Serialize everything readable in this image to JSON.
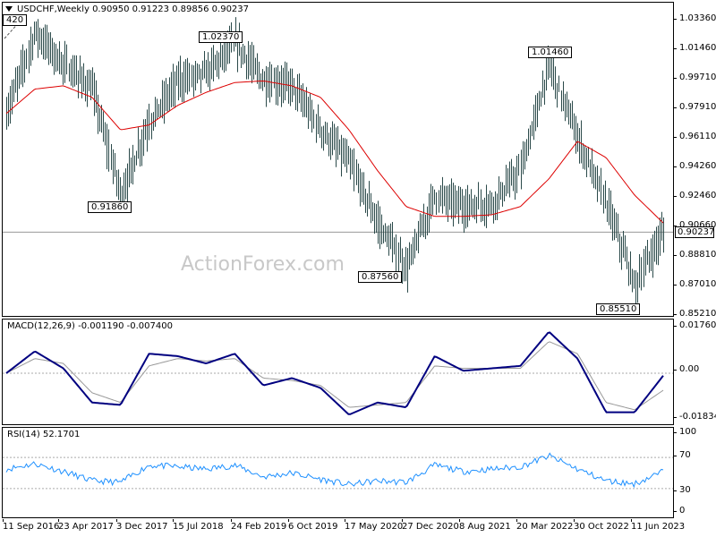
{
  "main": {
    "title": "USDCHF,Weekly  0.90950 0.91223 0.89856 0.90237",
    "corner_label": "420",
    "watermark": "ActionForex.com",
    "current_price": "0.90237",
    "price_ticks": [
      "1.03360",
      "1.01460",
      "0.99710",
      "0.97910",
      "0.96110",
      "0.94260",
      "0.92460",
      "0.90660",
      "0.88810",
      "0.87010",
      "0.85210"
    ],
    "annotations": [
      "1.02370",
      "0.91860",
      "0.87560",
      "1.01460",
      "0.85510"
    ]
  },
  "macd": {
    "title": "MACD(12,26,9) -0.001190 -0.007400",
    "ticks": [
      "0.017603",
      "0.00",
      "-0.01834"
    ]
  },
  "rsi": {
    "title": "RSI(14) 52.1701",
    "ticks": [
      "100",
      "70",
      "30",
      "0"
    ]
  },
  "xaxis": {
    "labels": [
      "11 Sep 2016",
      "23 Apr 2017",
      "3 Dec 2017",
      "15 Jul 2018",
      "24 Feb 2019",
      "6 Oct 2019",
      "17 May 2020",
      "27 Dec 2020",
      "8 Aug 2021",
      "20 Mar 2022",
      "30 Oct 2022",
      "11 Jun 2023"
    ]
  },
  "colors": {
    "price_bars": "#2b4a4a",
    "ma": "#dd0000",
    "macd": "#000080",
    "signal": "#999999",
    "rsi": "#1e90ff"
  },
  "chart_data": [
    {
      "type": "ohlc",
      "title": "USDCHF,Weekly",
      "timeframe": "Weekly",
      "last_bar": {
        "open": 0.9095,
        "high": 0.91223,
        "low": 0.89856,
        "close": 0.90237
      },
      "x": [
        "Sep 2016",
        "Jan 2017",
        "Apr 2017",
        "Aug 2017",
        "Dec 2017",
        "Apr 2018",
        "Jul 2018",
        "Oct 2018",
        "Feb 2019",
        "Jun 2019",
        "Oct 2019",
        "Feb 2020",
        "May 2020",
        "Sep 2020",
        "Dec 2020",
        "Apr 2021",
        "Aug 2021",
        "Dec 2021",
        "Mar 2022",
        "Jul 2022",
        "Oct 2022",
        "Feb 2023",
        "Jun 2023",
        "Sep 2023"
      ],
      "series": [
        {
          "values": [
            0.975,
            1.025,
            1.005,
            0.99,
            0.925,
            0.97,
            0.995,
            1.0,
            1.018,
            0.995,
            0.992,
            0.965,
            0.945,
            0.908,
            0.88,
            0.925,
            0.918,
            0.92,
            0.94,
            1.005,
            0.96,
            0.92,
            0.87,
            0.903
          ]
        },
        {
          "name": "Moving Average",
          "values": [
            0.975,
            0.99,
            0.992,
            0.985,
            0.965,
            0.968,
            0.98,
            0.988,
            0.994,
            0.995,
            0.992,
            0.985,
            0.965,
            0.94,
            0.918,
            0.912,
            0.912,
            0.913,
            0.918,
            0.935,
            0.958,
            0.948,
            0.925,
            0.908
          ]
        }
      ],
      "annotations": [
        {
          "label": "1.02370",
          "value": 1.0237
        },
        {
          "label": "0.91860",
          "value": 0.9186
        },
        {
          "label": "0.87560",
          "value": 0.8756
        },
        {
          "label": "1.01460",
          "value": 1.0146
        },
        {
          "label": "0.85510",
          "value": 0.8551
        }
      ],
      "ylim": [
        0.8521,
        1.0336
      ]
    },
    {
      "type": "line",
      "title": "MACD(12,26,9) -0.001190 -0.007400",
      "x": [
        "Sep 2016",
        "Jan 2017",
        "Apr 2017",
        "Aug 2017",
        "Dec 2017",
        "Apr 2018",
        "Jul 2018",
        "Oct 2018",
        "Feb 2019",
        "Jun 2019",
        "Oct 2019",
        "Feb 2020",
        "May 2020",
        "Sep 2020",
        "Dec 2020",
        "Apr 2021",
        "Aug 2021",
        "Dec 2021",
        "Mar 2022",
        "Jul 2022",
        "Oct 2022",
        "Feb 2023",
        "Jun 2023",
        "Sep 2023"
      ],
      "series": [
        {
          "values": [
            0.0,
            0.009,
            0.002,
            -0.012,
            -0.013,
            0.008,
            0.007,
            0.004,
            0.008,
            -0.005,
            -0.002,
            -0.006,
            -0.017,
            -0.012,
            -0.014,
            0.007,
            0.001,
            0.002,
            0.003,
            0.017,
            0.006,
            -0.016,
            -0.016,
            -0.001
          ]
        },
        {
          "values": [
            0.0,
            0.006,
            0.004,
            -0.008,
            -0.012,
            0.003,
            0.006,
            0.005,
            0.006,
            -0.002,
            -0.003,
            -0.005,
            -0.014,
            -0.013,
            -0.012,
            0.003,
            0.002,
            0.002,
            0.002,
            0.013,
            0.008,
            -0.012,
            -0.015,
            -0.007
          ]
        }
      ],
      "ylim": [
        -0.01834,
        0.017603
      ]
    },
    {
      "type": "line",
      "title": "RSI(14) 52.1701",
      "x": [
        "Sep 2016",
        "Jan 2017",
        "Apr 2017",
        "Aug 2017",
        "Dec 2017",
        "Apr 2018",
        "Jul 2018",
        "Oct 2018",
        "Feb 2019",
        "Jun 2019",
        "Oct 2019",
        "Feb 2020",
        "May 2020",
        "Sep 2020",
        "Dec 2020",
        "Apr 2021",
        "Aug 2021",
        "Dec 2021",
        "Mar 2022",
        "Jul 2022",
        "Oct 2022",
        "Feb 2023",
        "Jun 2023",
        "Sep 2023"
      ],
      "series": [
        {
          "values": [
            55,
            62,
            52,
            40,
            38,
            60,
            58,
            55,
            60,
            45,
            50,
            42,
            35,
            40,
            38,
            60,
            52,
            55,
            58,
            72,
            55,
            40,
            36,
            52
          ]
        }
      ],
      "ylim": [
        0,
        100
      ],
      "levels": [
        70,
        30
      ]
    }
  ]
}
